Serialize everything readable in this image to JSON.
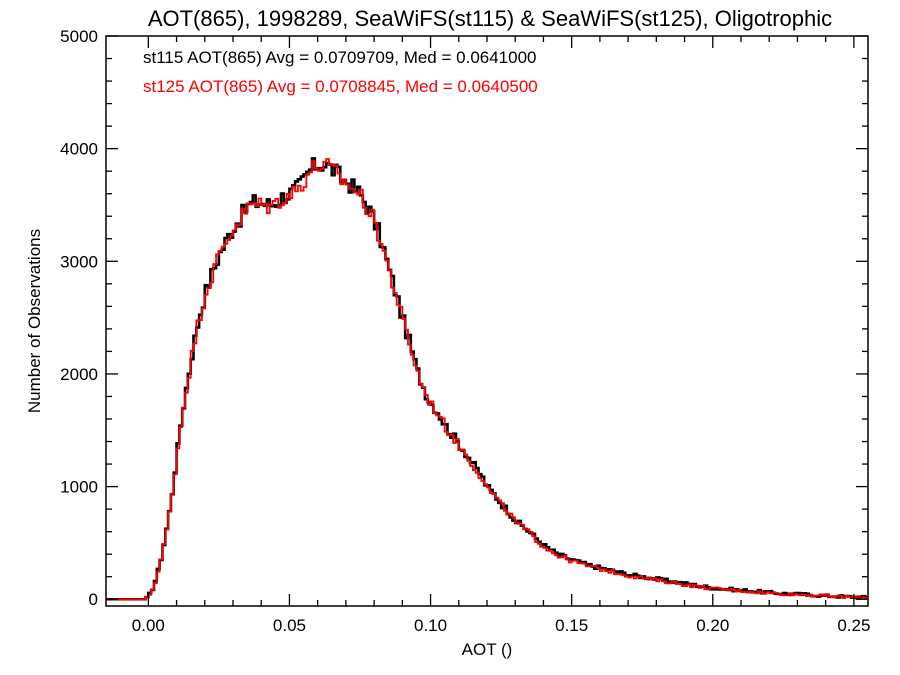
{
  "chart_data": {
    "type": "line",
    "title": "AOT(865), 1998289, SeaWiFS(st115) & SeaWiFS(st125), Oligotrophic",
    "xlabel": "AOT ()",
    "ylabel": "Number of Observations",
    "xlim": [
      -0.015,
      0.255
    ],
    "ylim": [
      -60,
      5000
    ],
    "xticks": [
      0.0,
      0.05,
      0.1,
      0.15,
      0.2,
      0.25
    ],
    "xtick_labels": [
      "0.00",
      "0.05",
      "0.10",
      "0.15",
      "0.20",
      "0.25"
    ],
    "yticks": [
      0,
      1000,
      2000,
      3000,
      4000,
      5000
    ],
    "ytick_labels": [
      "0",
      "1000",
      "2000",
      "3000",
      "4000",
      "5000"
    ],
    "step": "histogram",
    "bin_width": 0.001,
    "annotations": [
      {
        "text": "st115 AOT(865) Avg = 0.0709709, Med = 0.0641000",
        "color": "#000000"
      },
      {
        "text": "st125 AOT(865) Avg = 0.0708845, Med = 0.0640500",
        "color": "#ff0000"
      }
    ],
    "series": [
      {
        "color": "#000000",
        "x": [
          -0.015,
          -0.001,
          0.0,
          0.002,
          0.004,
          0.006,
          0.008,
          0.01,
          0.012,
          0.014,
          0.016,
          0.018,
          0.02,
          0.022,
          0.025,
          0.028,
          0.03,
          0.033,
          0.035,
          0.037,
          0.04,
          0.043,
          0.045,
          0.048,
          0.05,
          0.053,
          0.055,
          0.057,
          0.059,
          0.061,
          0.063,
          0.065,
          0.067,
          0.069,
          0.071,
          0.073,
          0.075,
          0.077,
          0.079,
          0.081,
          0.083,
          0.085,
          0.088,
          0.09,
          0.093,
          0.095,
          0.098,
          0.1,
          0.103,
          0.105,
          0.108,
          0.11,
          0.113,
          0.115,
          0.118,
          0.12,
          0.123,
          0.125,
          0.128,
          0.13,
          0.135,
          0.14,
          0.145,
          0.15,
          0.155,
          0.16,
          0.165,
          0.17,
          0.175,
          0.18,
          0.185,
          0.19,
          0.195,
          0.2,
          0.205,
          0.21,
          0.215,
          0.22,
          0.225,
          0.23,
          0.235,
          0.24,
          0.245,
          0.25,
          0.255
        ],
        "y": [
          0,
          0,
          20,
          120,
          300,
          550,
          850,
          1250,
          1650,
          1950,
          2250,
          2500,
          2700,
          2850,
          3050,
          3200,
          3300,
          3400,
          3480,
          3520,
          3520,
          3500,
          3520,
          3580,
          3600,
          3650,
          3720,
          3800,
          3850,
          3860,
          3860,
          3820,
          3780,
          3720,
          3700,
          3640,
          3600,
          3520,
          3420,
          3300,
          3150,
          2950,
          2700,
          2500,
          2250,
          2050,
          1850,
          1750,
          1650,
          1550,
          1450,
          1380,
          1280,
          1200,
          1100,
          1000,
          920,
          850,
          770,
          700,
          600,
          480,
          400,
          350,
          310,
          280,
          250,
          220,
          200,
          180,
          160,
          140,
          120,
          100,
          90,
          80,
          70,
          60,
          50,
          45,
          40,
          30,
          25,
          20,
          15
        ]
      },
      {
        "color": "#ff0000",
        "x": [
          -0.015,
          -0.001,
          0.0,
          0.002,
          0.004,
          0.006,
          0.008,
          0.01,
          0.012,
          0.014,
          0.016,
          0.018,
          0.02,
          0.022,
          0.025,
          0.028,
          0.03,
          0.033,
          0.035,
          0.037,
          0.04,
          0.043,
          0.045,
          0.048,
          0.05,
          0.053,
          0.055,
          0.057,
          0.059,
          0.061,
          0.063,
          0.065,
          0.067,
          0.069,
          0.071,
          0.073,
          0.075,
          0.077,
          0.079,
          0.081,
          0.083,
          0.085,
          0.088,
          0.09,
          0.093,
          0.095,
          0.098,
          0.1,
          0.103,
          0.105,
          0.108,
          0.11,
          0.113,
          0.115,
          0.118,
          0.12,
          0.123,
          0.125,
          0.128,
          0.13,
          0.135,
          0.14,
          0.145,
          0.15,
          0.155,
          0.16,
          0.165,
          0.17,
          0.175,
          0.18,
          0.185,
          0.19,
          0.195,
          0.2,
          0.205,
          0.21,
          0.215,
          0.22,
          0.225,
          0.23,
          0.235,
          0.24,
          0.245,
          0.25,
          0.255
        ],
        "y": [
          0,
          0,
          20,
          110,
          290,
          540,
          840,
          1240,
          1640,
          1940,
          2240,
          2490,
          2690,
          2840,
          3040,
          3190,
          3290,
          3390,
          3460,
          3500,
          3500,
          3490,
          3510,
          3570,
          3590,
          3640,
          3710,
          3790,
          3840,
          3850,
          3850,
          3810,
          3770,
          3710,
          3690,
          3630,
          3590,
          3510,
          3410,
          3290,
          3140,
          2940,
          2690,
          2490,
          2240,
          2040,
          1840,
          1740,
          1640,
          1540,
          1440,
          1370,
          1270,
          1190,
          1090,
          990,
          910,
          840,
          760,
          690,
          590,
          470,
          390,
          340,
          300,
          270,
          240,
          210,
          190,
          170,
          150,
          130,
          110,
          95,
          85,
          75,
          65,
          55,
          48,
          42,
          38,
          28,
          22,
          18,
          12
        ]
      }
    ]
  }
}
